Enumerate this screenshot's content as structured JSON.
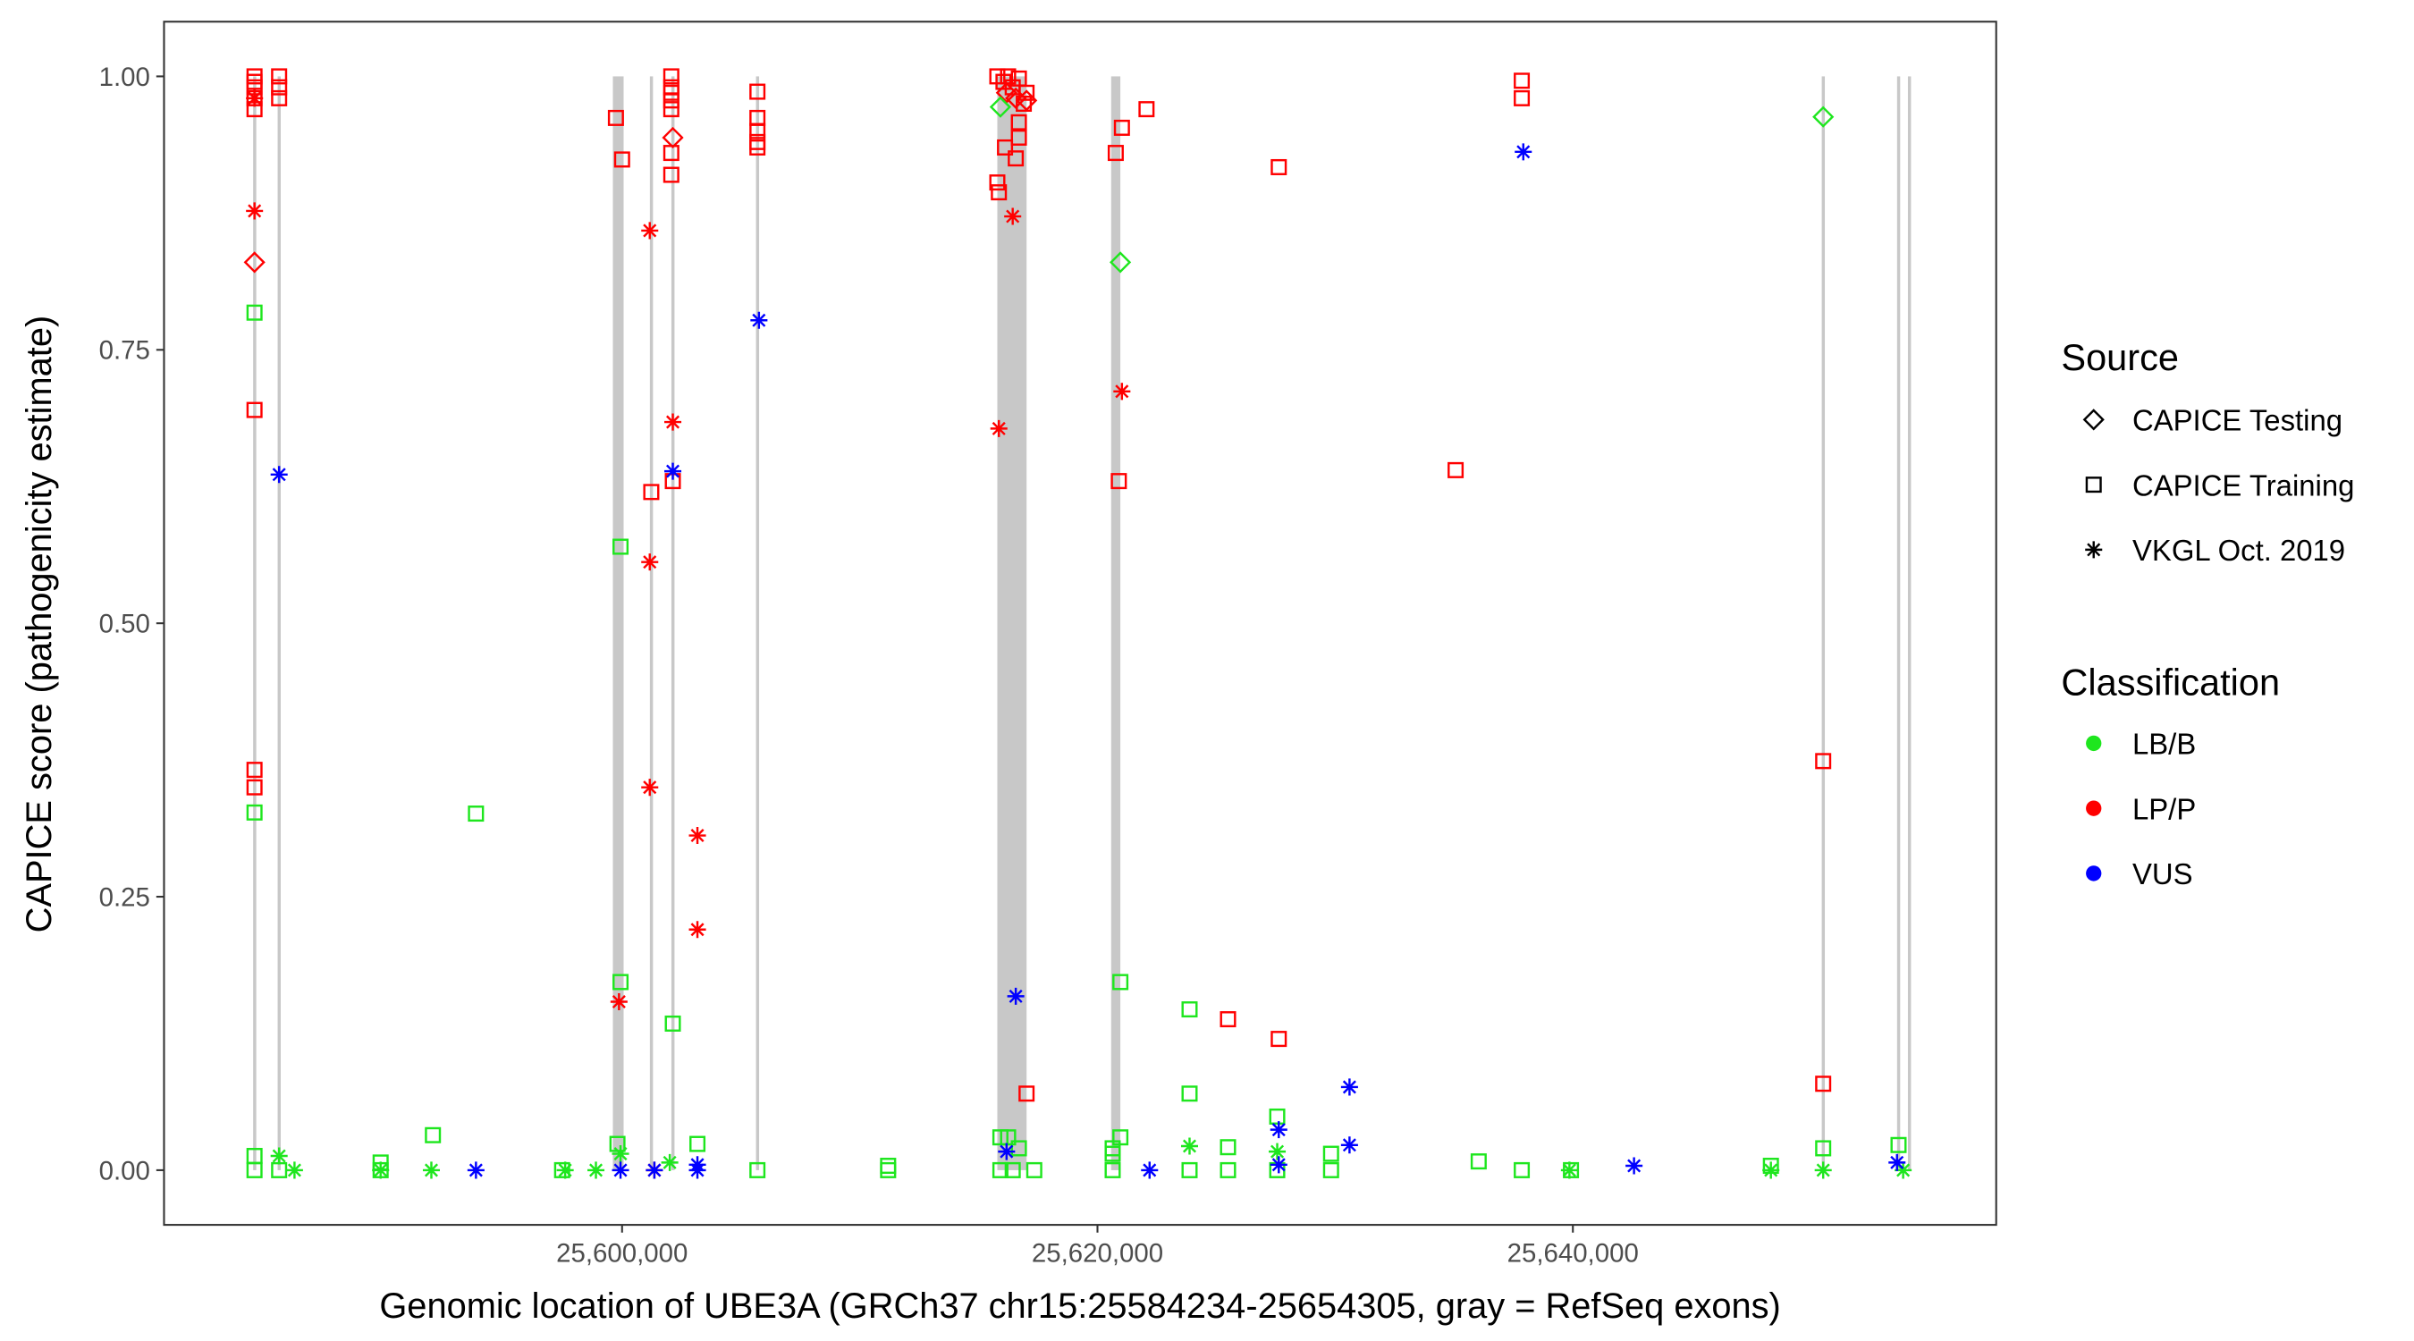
{
  "chart_data": {
    "type": "scatter",
    "xlabel": "Genomic location of UBE3A (GRCh37 chr15:25584234-25654305, gray = RefSeq exons)",
    "ylabel": "CAPICE score (pathogenicity estimate)",
    "xlim": [
      25580730,
      25657809
    ],
    "ylim": [
      -0.05,
      1.05
    ],
    "x_ticks": [
      {
        "value": 25600000,
        "label": "25,600,000"
      },
      {
        "value": 25620000,
        "label": "25,620,000"
      },
      {
        "value": 25640000,
        "label": "25,640,000"
      }
    ],
    "y_ticks": [
      {
        "value": 0,
        "label": "0.00"
      },
      {
        "value": 0.25,
        "label": "0.25"
      },
      {
        "value": 0.5,
        "label": "0.50"
      },
      {
        "value": 0.75,
        "label": "0.75"
      },
      {
        "value": 1,
        "label": "1.00"
      }
    ],
    "grid": false,
    "exons": [
      [
        25584480,
        25584600
      ],
      [
        25585510,
        25585630
      ],
      [
        25599612,
        25600065
      ],
      [
        25601170,
        25601290
      ],
      [
        25602075,
        25602195
      ],
      [
        25605635,
        25605755
      ],
      [
        25615787,
        25617017
      ],
      [
        25620575,
        25620963
      ],
      [
        25650470,
        25650590
      ],
      [
        25653640,
        25653760
      ],
      [
        25654095,
        25654215
      ]
    ],
    "legend": {
      "placement": "right",
      "source_title": "Source",
      "source_items": [
        {
          "key": "testing",
          "label": "CAPICE Testing",
          "shape": "diamond"
        },
        {
          "key": "training",
          "label": "CAPICE Training",
          "shape": "square"
        },
        {
          "key": "vkgl",
          "label": "VKGL Oct. 2019",
          "shape": "asterisk"
        }
      ],
      "class_title": "Classification",
      "class_items": [
        {
          "key": "LB/B",
          "label": "LB/B",
          "color": "#1ee61e"
        },
        {
          "key": "LP/P",
          "label": "LP/P",
          "color": "#ff0000"
        },
        {
          "key": "VUS",
          "label": "VUS",
          "color": "#0000ff"
        }
      ]
    },
    "points_columns": [
      "position",
      "score",
      "source",
      "classification"
    ],
    "points": [
      [
        25584537,
        1.0,
        "training",
        "LP/P"
      ],
      [
        25584537,
        0.995,
        "training",
        "LP/P"
      ],
      [
        25584537,
        0.99,
        "training",
        "LP/P"
      ],
      [
        25584537,
        0.98,
        "training",
        "LP/P"
      ],
      [
        25584537,
        0.97,
        "training",
        "LP/P"
      ],
      [
        25584537,
        0.695,
        "training",
        "LP/P"
      ],
      [
        25584537,
        0.366,
        "training",
        "LP/P"
      ],
      [
        25584537,
        0.35,
        "training",
        "LP/P"
      ],
      [
        25585572,
        1.0,
        "training",
        "LP/P"
      ],
      [
        25585572,
        0.99,
        "training",
        "LP/P"
      ],
      [
        25585572,
        0.98,
        "training",
        "LP/P"
      ],
      [
        25599741,
        0.962,
        "training",
        "LP/P"
      ],
      [
        25600000,
        0.924,
        "training",
        "LP/P"
      ],
      [
        25601229,
        0.62,
        "training",
        "LP/P"
      ],
      [
        25602070,
        1.0,
        "training",
        "LP/P"
      ],
      [
        25602070,
        0.99,
        "training",
        "LP/P"
      ],
      [
        25602070,
        0.985,
        "training",
        "LP/P"
      ],
      [
        25602070,
        0.978,
        "training",
        "LP/P"
      ],
      [
        25602070,
        0.97,
        "training",
        "LP/P"
      ],
      [
        25602070,
        0.93,
        "training",
        "LP/P"
      ],
      [
        25602070,
        0.91,
        "training",
        "LP/P"
      ],
      [
        25602135,
        0.63,
        "training",
        "LP/P"
      ],
      [
        25605694,
        0.986,
        "training",
        "LP/P"
      ],
      [
        25605694,
        0.962,
        "training",
        "LP/P"
      ],
      [
        25605694,
        0.95,
        "training",
        "LP/P"
      ],
      [
        25605694,
        0.94,
        "training",
        "LP/P"
      ],
      [
        25605694,
        0.935,
        "training",
        "LP/P"
      ],
      [
        25615787,
        1.0,
        "training",
        "LP/P"
      ],
      [
        25615787,
        0.903,
        "training",
        "LP/P"
      ],
      [
        25615852,
        0.894,
        "training",
        "LP/P"
      ],
      [
        25616110,
        0.935,
        "training",
        "LP/P"
      ],
      [
        25616693,
        0.958,
        "training",
        "LP/P"
      ],
      [
        25616693,
        0.944,
        "training",
        "LP/P"
      ],
      [
        25616563,
        0.925,
        "training",
        "LP/P"
      ],
      [
        25616046,
        0.995,
        "training",
        "LP/P"
      ],
      [
        25616240,
        1.0,
        "training",
        "LP/P"
      ],
      [
        25616434,
        0.99,
        "training",
        "LP/P"
      ],
      [
        25616693,
        0.998,
        "training",
        "LP/P"
      ],
      [
        25617016,
        0.985,
        "training",
        "LP/P"
      ],
      [
        25616900,
        0.975,
        "training",
        "LP/P"
      ],
      [
        25617016,
        0.07,
        "training",
        "LP/P"
      ],
      [
        25620769,
        0.93,
        "training",
        "LP/P"
      ],
      [
        25621028,
        0.953,
        "training",
        "LP/P"
      ],
      [
        25622063,
        0.97,
        "training",
        "LP/P"
      ],
      [
        25620898,
        0.63,
        "training",
        "LP/P"
      ],
      [
        25625492,
        0.138,
        "training",
        "LP/P"
      ],
      [
        25627627,
        0.917,
        "training",
        "LP/P"
      ],
      [
        25627627,
        0.12,
        "training",
        "LP/P"
      ],
      [
        25635067,
        0.64,
        "training",
        "LP/P"
      ],
      [
        25637850,
        0.996,
        "training",
        "LP/P"
      ],
      [
        25637850,
        0.98,
        "training",
        "LP/P"
      ],
      [
        25650531,
        0.374,
        "training",
        "LP/P"
      ],
      [
        25650531,
        0.079,
        "training",
        "LP/P"
      ],
      [
        25584537,
        0.83,
        "testing",
        "LP/P"
      ],
      [
        25602135,
        0.944,
        "testing",
        "LP/P"
      ],
      [
        25616175,
        0.985,
        "testing",
        "LP/P"
      ],
      [
        25616563,
        0.98,
        "testing",
        "LP/P"
      ],
      [
        25617016,
        0.978,
        "testing",
        "LP/P"
      ],
      [
        25584537,
        0.877,
        "vkgl",
        "LP/P"
      ],
      [
        25584537,
        0.98,
        "vkgl",
        "LP/P"
      ],
      [
        25599871,
        0.154,
        "vkgl",
        "LP/P"
      ],
      [
        25601165,
        0.859,
        "vkgl",
        "LP/P"
      ],
      [
        25601165,
        0.556,
        "vkgl",
        "LP/P"
      ],
      [
        25601165,
        0.35,
        "vkgl",
        "LP/P"
      ],
      [
        25602135,
        0.684,
        "vkgl",
        "LP/P"
      ],
      [
        25603170,
        0.306,
        "vkgl",
        "LP/P"
      ],
      [
        25603170,
        0.22,
        "vkgl",
        "LP/P"
      ],
      [
        25615852,
        0.678,
        "vkgl",
        "LP/P"
      ],
      [
        25616434,
        0.872,
        "vkgl",
        "LP/P"
      ],
      [
        25621028,
        0.712,
        "vkgl",
        "LP/P"
      ],
      [
        25601359,
        0.0,
        "vkgl",
        "LP/P"
      ],
      [
        25584537,
        0.784,
        "training",
        "LB/B"
      ],
      [
        25584537,
        0.327,
        "training",
        "LB/B"
      ],
      [
        25584537,
        0.013,
        "training",
        "LB/B"
      ],
      [
        25584537,
        0.0,
        "training",
        "LB/B"
      ],
      [
        25585572,
        0.0,
        "training",
        "LB/B"
      ],
      [
        25589842,
        0.007,
        "training",
        "LB/B"
      ],
      [
        25589842,
        0.0,
        "training",
        "LB/B"
      ],
      [
        25592042,
        0.032,
        "training",
        "LB/B"
      ],
      [
        25593853,
        0.326,
        "training",
        "LB/B"
      ],
      [
        25597477,
        0.0,
        "training",
        "LB/B"
      ],
      [
        25599806,
        0.024,
        "training",
        "LB/B"
      ],
      [
        25599935,
        0.57,
        "training",
        "LB/B"
      ],
      [
        25599935,
        0.172,
        "training",
        "LB/B"
      ],
      [
        25602135,
        0.134,
        "training",
        "LB/B"
      ],
      [
        25603170,
        0.024,
        "training",
        "LB/B"
      ],
      [
        25605694,
        0.0,
        "training",
        "LB/B"
      ],
      [
        25611193,
        0.004,
        "training",
        "LB/B"
      ],
      [
        25611193,
        0.0,
        "training",
        "LB/B"
      ],
      [
        25615916,
        0.03,
        "training",
        "LB/B"
      ],
      [
        25615916,
        0.0,
        "training",
        "LB/B"
      ],
      [
        25616240,
        0.03,
        "training",
        "LB/B"
      ],
      [
        25616693,
        0.02,
        "training",
        "LB/B"
      ],
      [
        25617340,
        0.0,
        "training",
        "LB/B"
      ],
      [
        25616434,
        0.0,
        "training",
        "LB/B"
      ],
      [
        25620639,
        0.02,
        "training",
        "LB/B"
      ],
      [
        25620639,
        0.015,
        "training",
        "LB/B"
      ],
      [
        25620639,
        0.0,
        "training",
        "LB/B"
      ],
      [
        25620963,
        0.03,
        "training",
        "LB/B"
      ],
      [
        25620963,
        0.172,
        "training",
        "LB/B"
      ],
      [
        25623874,
        0.147,
        "training",
        "LB/B"
      ],
      [
        25623874,
        0.07,
        "training",
        "LB/B"
      ],
      [
        25623874,
        0.0,
        "training",
        "LB/B"
      ],
      [
        25625492,
        0.021,
        "training",
        "LB/B"
      ],
      [
        25625492,
        0.0,
        "training",
        "LB/B"
      ],
      [
        25627562,
        0.049,
        "training",
        "LB/B"
      ],
      [
        25627562,
        0.0,
        "training",
        "LB/B"
      ],
      [
        25629827,
        0.015,
        "training",
        "LB/B"
      ],
      [
        25629827,
        0.0,
        "training",
        "LB/B"
      ],
      [
        25636038,
        0.008,
        "training",
        "LB/B"
      ],
      [
        25637850,
        0.0,
        "training",
        "LB/B"
      ],
      [
        25639920,
        0.0,
        "training",
        "LB/B"
      ],
      [
        25648331,
        0.004,
        "training",
        "LB/B"
      ],
      [
        25650531,
        0.02,
        "training",
        "LB/B"
      ],
      [
        25653701,
        0.023,
        "training",
        "LB/B"
      ],
      [
        25615916,
        0.972,
        "testing",
        "LB/B"
      ],
      [
        25620963,
        0.83,
        "testing",
        "LB/B"
      ],
      [
        25650531,
        0.963,
        "testing",
        "LB/B"
      ],
      [
        25585572,
        0.013,
        "vkgl",
        "LB/B"
      ],
      [
        25586219,
        0.0,
        "vkgl",
        "LB/B"
      ],
      [
        25589842,
        0.0,
        "vkgl",
        "LB/B"
      ],
      [
        25591977,
        0.0,
        "vkgl",
        "LB/B"
      ],
      [
        25597606,
        0.0,
        "vkgl",
        "LB/B"
      ],
      [
        25598900,
        0.0,
        "vkgl",
        "LB/B"
      ],
      [
        25599935,
        0.015,
        "vkgl",
        "LB/B"
      ],
      [
        25602006,
        0.007,
        "vkgl",
        "LB/B"
      ],
      [
        25623874,
        0.022,
        "vkgl",
        "LB/B"
      ],
      [
        25627562,
        0.017,
        "vkgl",
        "LB/B"
      ],
      [
        25639855,
        0.0,
        "vkgl",
        "LB/B"
      ],
      [
        25648331,
        0.0,
        "vkgl",
        "LB/B"
      ],
      [
        25650531,
        0.0,
        "vkgl",
        "LB/B"
      ],
      [
        25653895,
        0.0,
        "vkgl",
        "LB/B"
      ],
      [
        25585572,
        0.636,
        "vkgl",
        "VUS"
      ],
      [
        25602135,
        0.639,
        "vkgl",
        "VUS"
      ],
      [
        25605758,
        0.777,
        "vkgl",
        "VUS"
      ],
      [
        25616563,
        0.159,
        "vkgl",
        "VUS"
      ],
      [
        25616175,
        0.017,
        "vkgl",
        "VUS"
      ],
      [
        25593853,
        0.0,
        "vkgl",
        "VUS"
      ],
      [
        25599935,
        0.0,
        "vkgl",
        "VUS"
      ],
      [
        25601359,
        0.0,
        "vkgl",
        "VUS"
      ],
      [
        25603170,
        0.005,
        "vkgl",
        "VUS"
      ],
      [
        25603170,
        0.0,
        "vkgl",
        "VUS"
      ],
      [
        25622192,
        0.0,
        "vkgl",
        "VUS"
      ],
      [
        25627627,
        0.037,
        "vkgl",
        "VUS"
      ],
      [
        25627627,
        0.005,
        "vkgl",
        "VUS"
      ],
      [
        25630603,
        0.076,
        "vkgl",
        "VUS"
      ],
      [
        25630603,
        0.023,
        "vkgl",
        "VUS"
      ],
      [
        25637914,
        0.931,
        "vkgl",
        "VUS"
      ],
      [
        25642573,
        0.004,
        "vkgl",
        "VUS"
      ],
      [
        25653636,
        0.007,
        "vkgl",
        "VUS"
      ]
    ]
  }
}
